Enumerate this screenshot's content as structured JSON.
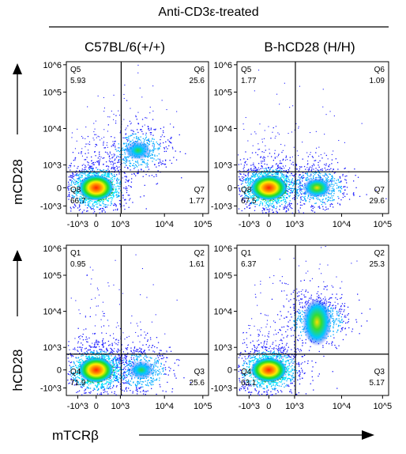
{
  "figure": {
    "title": "Anti-CD3ε-treated",
    "col_titles": [
      "C57BL/6(+/+)",
      "B-hCD28 (H/H)"
    ],
    "row_axis_titles": [
      "mCD28",
      "hCD28"
    ],
    "x_axis_title": "mTCRβ",
    "colors": {
      "density_low": "#1a1aff",
      "density_mid_low": "#00e0ff",
      "density_mid": "#22dd22",
      "density_mid_high": "#ffee00",
      "density_high": "#ff2200",
      "gate_line": "#000000"
    }
  },
  "chart_data": [
    {
      "type": "scatter",
      "panel": "C57BL/6(+/+) mCD28 vs mTCRβ",
      "x_ticks": [
        "-10^3",
        "0",
        "10^3",
        "10^4",
        "10^5"
      ],
      "y_ticks": [
        "10^6",
        "10^5",
        "10^4",
        "10^3",
        "0",
        "-10^3"
      ],
      "quadrants": [
        {
          "name": "Q5",
          "value": "5.93",
          "position": "top-left"
        },
        {
          "name": "Q6",
          "value": "25.6",
          "position": "top-right"
        },
        {
          "name": "Q8",
          "value": "66.7",
          "position": "bottom-left"
        },
        {
          "name": "Q7",
          "value": "1.77",
          "position": "bottom-right"
        }
      ],
      "populations": [
        {
          "x": 0,
          "y": 0,
          "weight": 0.72
        },
        {
          "x": 2500,
          "y": 2500,
          "weight": 0.28
        }
      ]
    },
    {
      "type": "scatter",
      "panel": "B-hCD28 (H/H) mCD28 vs mTCRβ",
      "x_ticks": [
        "-10^3",
        "0",
        "10^3",
        "10^4",
        "10^5"
      ],
      "y_ticks": [
        "10^6",
        "10^5",
        "10^4",
        "10^3",
        "0",
        "-10^3"
      ],
      "quadrants": [
        {
          "name": "Q5",
          "value": "1.77",
          "position": "top-left"
        },
        {
          "name": "Q6",
          "value": "1.09",
          "position": "top-right"
        },
        {
          "name": "Q8",
          "value": "67.5",
          "position": "bottom-left"
        },
        {
          "name": "Q7",
          "value": "29.6",
          "position": "bottom-right"
        }
      ],
      "populations": [
        {
          "x": 0,
          "y": 0,
          "weight": 0.7
        },
        {
          "x": 3000,
          "y": 0,
          "weight": 0.3
        }
      ]
    },
    {
      "type": "scatter",
      "panel": "C57BL/6(+/+) hCD28 vs mTCRβ",
      "x_ticks": [
        "-10^3",
        "0",
        "10^3",
        "10^4",
        "10^5"
      ],
      "y_ticks": [
        "10^6",
        "10^5",
        "10^4",
        "10^3",
        "0",
        "-10^3"
      ],
      "quadrants": [
        {
          "name": "Q1",
          "value": "0.95",
          "position": "top-left"
        },
        {
          "name": "Q2",
          "value": "1.61",
          "position": "top-right"
        },
        {
          "name": "Q4",
          "value": "71.9",
          "position": "bottom-left"
        },
        {
          "name": "Q3",
          "value": "25.6",
          "position": "bottom-right"
        }
      ],
      "populations": [
        {
          "x": 0,
          "y": 0,
          "weight": 0.72
        },
        {
          "x": 3000,
          "y": 0,
          "weight": 0.28
        }
      ]
    },
    {
      "type": "scatter",
      "panel": "B-hCD28 (H/H) hCD28 vs mTCRβ",
      "x_ticks": [
        "-10^3",
        "0",
        "10^3",
        "10^4",
        "10^5"
      ],
      "y_ticks": [
        "10^6",
        "10^5",
        "10^4",
        "10^3",
        "0",
        "-10^3"
      ],
      "quadrants": [
        {
          "name": "Q1",
          "value": "6.37",
          "position": "top-left"
        },
        {
          "name": "Q2",
          "value": "25.3",
          "position": "top-right"
        },
        {
          "name": "Q4",
          "value": "63.1",
          "position": "bottom-left"
        },
        {
          "name": "Q3",
          "value": "5.17",
          "position": "bottom-right"
        }
      ],
      "populations": [
        {
          "x": 0,
          "y": 0,
          "weight": 0.66
        },
        {
          "x": 3000,
          "y": 5000,
          "weight": 0.34
        }
      ]
    }
  ]
}
